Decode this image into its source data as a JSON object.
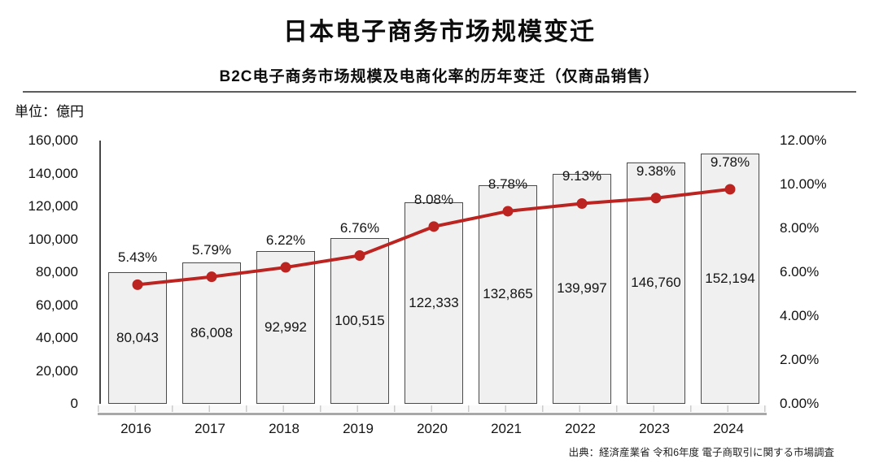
{
  "page": {
    "title": "日本电子商务市场规模变迁",
    "subtitle": "B2C电子商务市场规模及电商化率的历年变迁（仅商品销售）",
    "unit_label": "単位：億円",
    "source": "出典：経済産業省 令和6年度 電子商取引に関する市場調査"
  },
  "chart_data": {
    "type": "bar",
    "subtype": "combo-bar-line",
    "title": "日本电子商务市场规模变迁",
    "subtitle": "B2C电子商务市场规模及电商化率的历年变迁（仅商品销售）",
    "categories": [
      "2016",
      "2017",
      "2018",
      "2019",
      "2020",
      "2021",
      "2022",
      "2023",
      "2024"
    ],
    "series": [
      {
        "type": "bar",
        "axis": "left",
        "values": [
          80043,
          86008,
          92992,
          100515,
          122333,
          132865,
          139997,
          146760,
          152194
        ],
        "labels": [
          "80,043",
          "86,008",
          "92,992",
          "100,515",
          "122,333",
          "132,865",
          "139,997",
          "146,760",
          "152,194"
        ]
      },
      {
        "type": "line",
        "axis": "right",
        "values": [
          5.43,
          5.79,
          6.22,
          6.76,
          8.08,
          8.78,
          9.13,
          9.38,
          9.78
        ],
        "labels": [
          "5.43%",
          "5.79%",
          "6.22%",
          "6.76%",
          "8.08%",
          "8.78%",
          "9.13%",
          "9.38%",
          "9.78%"
        ]
      }
    ],
    "left_axis": {
      "min": 0,
      "max": 160000,
      "ticks": [
        "160,000",
        "140,000",
        "120,000",
        "100,000",
        "80,000",
        "60,000",
        "40,000",
        "20,000",
        "0"
      ]
    },
    "right_axis": {
      "min": 0,
      "max": 12,
      "ticks": [
        "12.00%",
        "10.00%",
        "8.00%",
        "6.00%",
        "4.00%",
        "2.00%",
        "0.00%"
      ]
    },
    "colors": {
      "bar_fill": "#f0f0f0",
      "bar_border": "#4a4a4a",
      "line": "#bb2420",
      "baseline": "#a8a8a8",
      "text": "#141414"
    },
    "grid": false,
    "legend": "none"
  }
}
